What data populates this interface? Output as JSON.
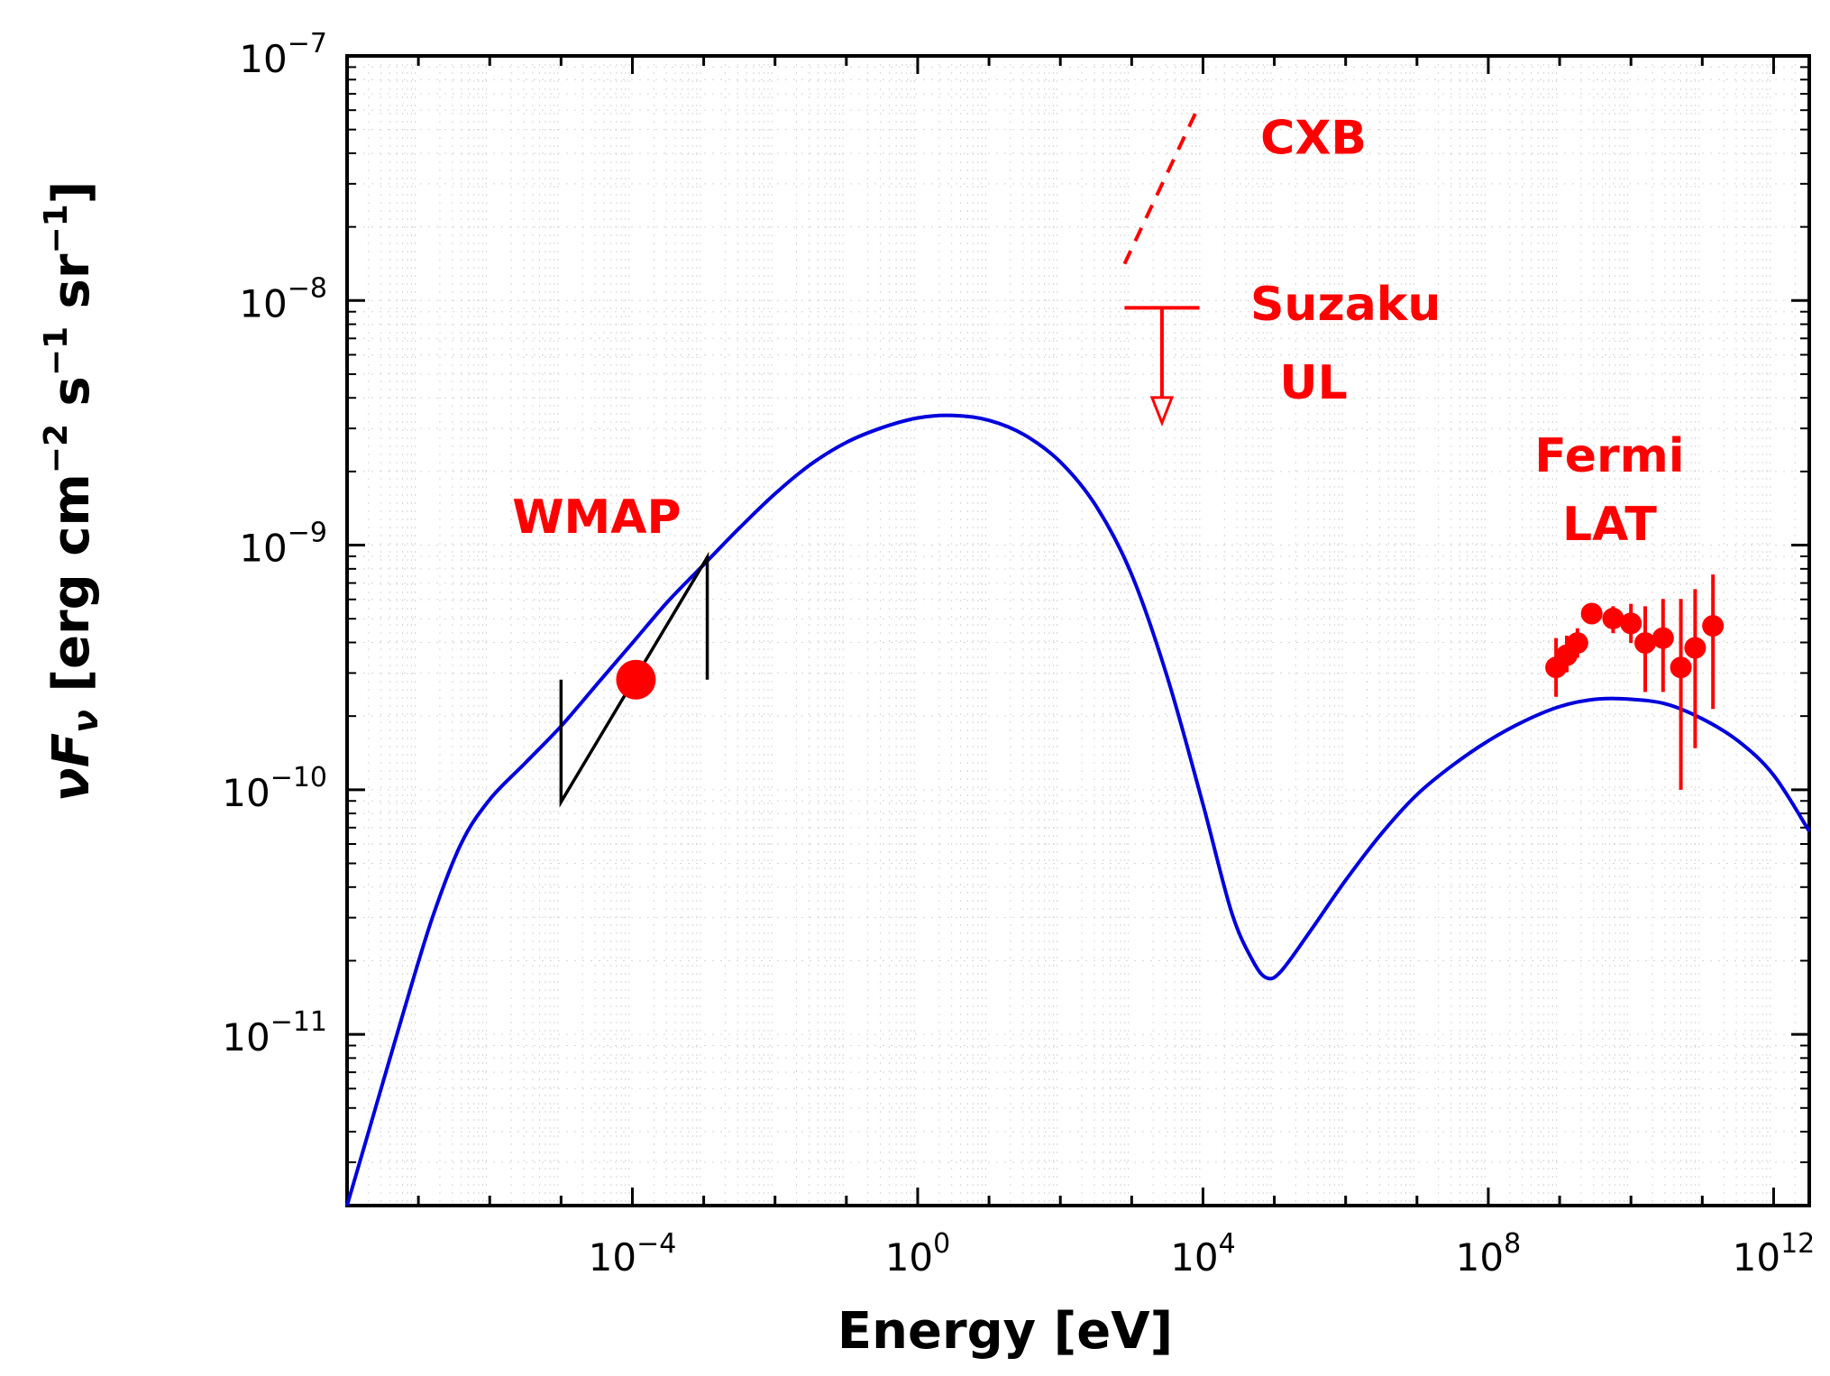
{
  "chart_data": {
    "type": "scatter",
    "title": "",
    "xlabel": "Energy [eV]",
    "ylabel": "νF_ν [erg cm^-2 s^-1 sr^-1]",
    "xscale": "log",
    "yscale": "log",
    "xlim_log10": [
      -8,
      12.5
    ],
    "ylim_log10": [
      -11.7,
      -7
    ],
    "x_ticks": [
      {
        "log": -4,
        "base": "10",
        "exp": "−4"
      },
      {
        "log": 0,
        "base": "10",
        "exp": "0"
      },
      {
        "log": 4,
        "base": "10",
        "exp": "4"
      },
      {
        "log": 8,
        "base": "10",
        "exp": "8"
      },
      {
        "log": 12,
        "base": "10",
        "exp": "12"
      }
    ],
    "y_ticks": [
      {
        "log": -7,
        "base": "10",
        "exp": "−7"
      },
      {
        "log": -8,
        "base": "10",
        "exp": "−8"
      },
      {
        "log": -9,
        "base": "10",
        "exp": "−9"
      },
      {
        "log": -10,
        "base": "10",
        "exp": "−10"
      },
      {
        "log": -11,
        "base": "10",
        "exp": "−11"
      }
    ],
    "model_curve": {
      "name": "model",
      "color": "#0000dd",
      "log_points": [
        [
          -8.0,
          -11.7
        ],
        [
          -7.6,
          -11.3
        ],
        [
          -7.2,
          -10.9
        ],
        [
          -6.8,
          -10.52
        ],
        [
          -6.4,
          -10.22
        ],
        [
          -6.0,
          -10.04
        ],
        [
          -5.5,
          -9.89
        ],
        [
          -5.0,
          -9.74
        ],
        [
          -4.5,
          -9.57
        ],
        [
          -4.0,
          -9.4
        ],
        [
          -3.5,
          -9.23
        ],
        [
          -3.0,
          -9.08
        ],
        [
          -2.5,
          -8.93
        ],
        [
          -2.0,
          -8.79
        ],
        [
          -1.5,
          -8.67
        ],
        [
          -1.0,
          -8.58
        ],
        [
          -0.5,
          -8.52
        ],
        [
          0.0,
          -8.48
        ],
        [
          0.5,
          -8.47
        ],
        [
          1.0,
          -8.49
        ],
        [
          1.5,
          -8.55
        ],
        [
          2.0,
          -8.66
        ],
        [
          2.5,
          -8.84
        ],
        [
          3.0,
          -9.12
        ],
        [
          3.5,
          -9.54
        ],
        [
          4.0,
          -10.06
        ],
        [
          4.4,
          -10.5
        ],
        [
          4.7,
          -10.7
        ],
        [
          4.9,
          -10.77
        ],
        [
          5.1,
          -10.74
        ],
        [
          5.5,
          -10.58
        ],
        [
          6.0,
          -10.37
        ],
        [
          6.5,
          -10.18
        ],
        [
          7.0,
          -10.02
        ],
        [
          7.5,
          -9.9
        ],
        [
          8.0,
          -9.8
        ],
        [
          8.5,
          -9.72
        ],
        [
          9.0,
          -9.66
        ],
        [
          9.5,
          -9.63
        ],
        [
          10.0,
          -9.63
        ],
        [
          10.5,
          -9.65
        ],
        [
          11.0,
          -9.71
        ],
        [
          11.5,
          -9.8
        ],
        [
          12.0,
          -9.94
        ],
        [
          12.5,
          -10.17
        ]
      ]
    },
    "series": [
      {
        "name": "WMAP",
        "color": "#ff0000",
        "points": [
          {
            "x_log": -3.95,
            "y_log": -9.55
          }
        ]
      },
      {
        "name": "Fermi LAT",
        "color": "#ff0000",
        "points": [
          {
            "x_log": 8.95,
            "y_log": -9.5,
            "y_lo": -9.62,
            "y_hi": -9.38
          },
          {
            "x_log": 9.1,
            "y_log": -9.45,
            "y_lo": -9.52,
            "y_hi": -9.37
          },
          {
            "x_log": 9.25,
            "y_log": -9.4,
            "y_lo": -9.46,
            "y_hi": -9.34
          },
          {
            "x_log": 9.45,
            "y_log": -9.28,
            "y_lo": -9.32,
            "y_hi": -9.24
          },
          {
            "x_log": 9.75,
            "y_log": -9.3,
            "y_lo": -9.36,
            "y_hi": -9.25
          },
          {
            "x_log": 10.0,
            "y_log": -9.32,
            "y_lo": -9.4,
            "y_hi": -9.24
          },
          {
            "x_log": 10.2,
            "y_log": -9.4,
            "y_lo": -9.6,
            "y_hi": -9.25
          },
          {
            "x_log": 10.45,
            "y_log": -9.38,
            "y_lo": -9.6,
            "y_hi": -9.22
          },
          {
            "x_log": 10.7,
            "y_log": -9.5,
            "y_lo": -10.0,
            "y_hi": -9.22
          },
          {
            "x_log": 10.9,
            "y_log": -9.42,
            "y_lo": -9.83,
            "y_hi": -9.18
          },
          {
            "x_log": 11.15,
            "y_log": -9.33,
            "y_lo": -9.67,
            "y_hi": -9.12
          }
        ]
      }
    ],
    "wmap_bowtie": {
      "color": "#000000",
      "log_points": [
        [
          -5.0,
          -9.55
        ],
        [
          -5.0,
          -10.05
        ],
        [
          -2.95,
          -9.05
        ],
        [
          -2.95,
          -9.55
        ]
      ]
    },
    "cxb": {
      "name": "CXB",
      "color": "#ff0000",
      "style": "dashed",
      "log_points": [
        [
          2.9,
          -7.85
        ],
        [
          3.95,
          -7.2
        ]
      ]
    },
    "suzaku_ul": {
      "name": "Suzaku UL",
      "color": "#ff0000",
      "x_log_range": [
        2.9,
        3.95
      ],
      "y_log_top": -8.03,
      "y_log_arrow": -8.5
    },
    "annotations": [
      {
        "text": "WMAP",
        "x_log": -4.5,
        "y_log": -8.95
      },
      {
        "text": "CXB",
        "x_log": 5.55,
        "y_log": -7.4
      },
      {
        "text": "Suzaku",
        "x_log": 6.0,
        "y_log": -8.08
      },
      {
        "text": "UL",
        "x_log": 5.55,
        "y_log": -8.4
      },
      {
        "text": "Fermi",
        "x_log": 9.7,
        "y_log": -8.7
      },
      {
        "text": "LAT",
        "x_log": 9.7,
        "y_log": -8.98
      }
    ]
  }
}
